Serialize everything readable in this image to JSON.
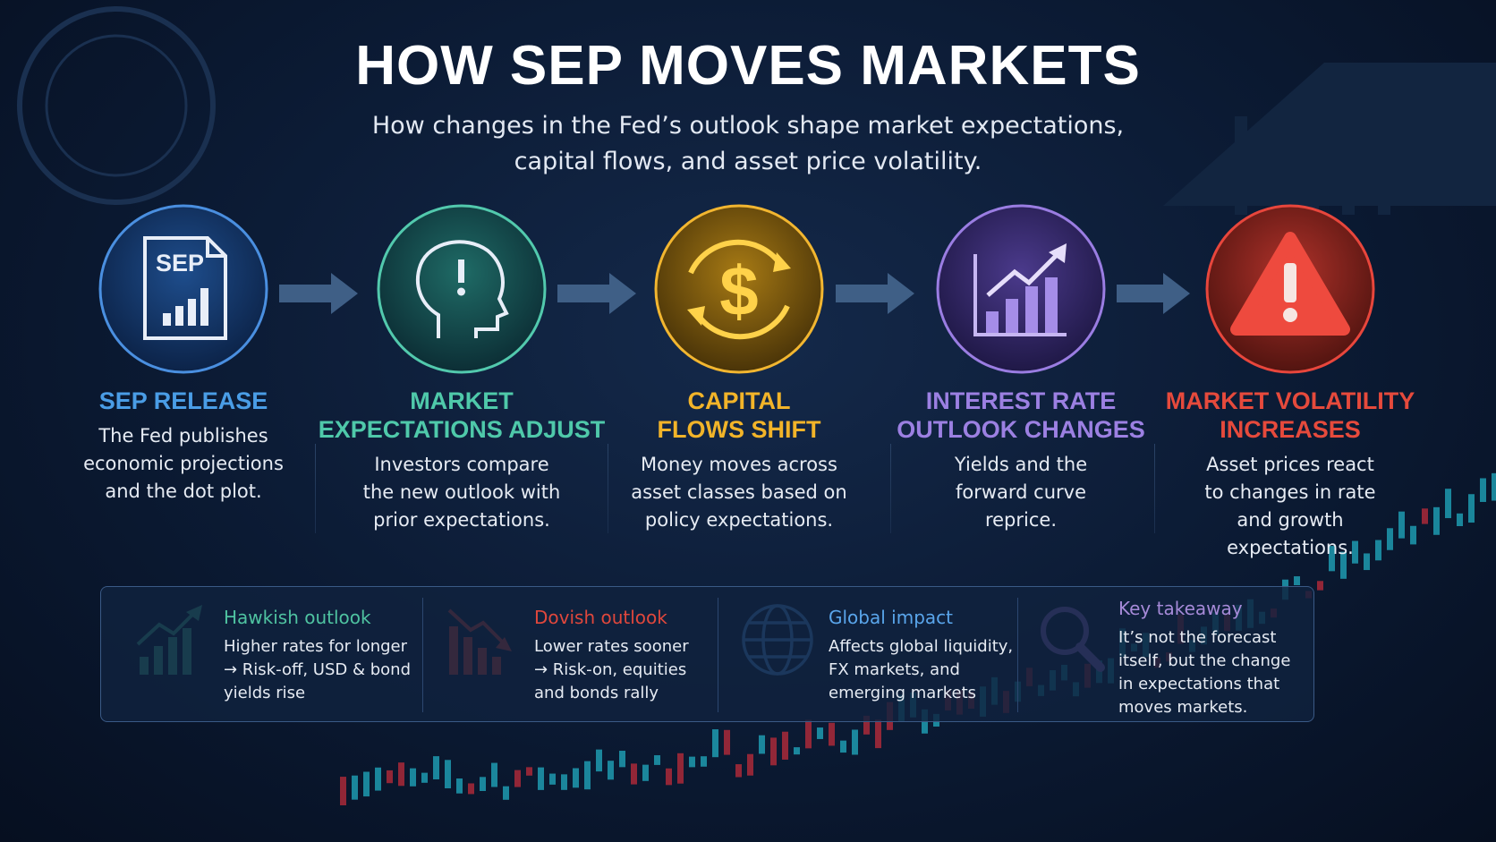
{
  "title": "HOW SEP MOVES MARKETS",
  "subtitle": [
    "How changes in the Fed’s outlook shape market expectations,",
    "capital flows, and asset price volatility."
  ],
  "steps": [
    {
      "icon_label": "SEP",
      "title": [
        "SEP RELEASE"
      ],
      "description": [
        "The Fed publishes",
        "economic projections",
        "and the dot plot."
      ]
    },
    {
      "title": [
        "MARKET",
        "EXPECTATIONS ADJUST"
      ],
      "description": [
        "Investors compare",
        "the new outlook with",
        "prior expectations."
      ]
    },
    {
      "title": [
        "CAPITAL",
        "FLOWS SHIFT"
      ],
      "description": [
        "Money moves across",
        "asset classes based on",
        "policy expectations."
      ]
    },
    {
      "title": [
        "INTEREST RATE",
        "OUTLOOK CHANGES"
      ],
      "description": [
        "Yields and the",
        "forward curve",
        "reprice."
      ]
    },
    {
      "title": [
        "MARKET VOLATILITY",
        "INCREASES"
      ],
      "description": [
        "Asset prices react",
        "to changes in rate",
        "and growth",
        "expectations."
      ]
    }
  ],
  "notes": [
    {
      "title": "Hawkish outlook",
      "text": [
        "Higher rates for longer",
        "→ Risk-off, USD & bond",
        "yields rise"
      ]
    },
    {
      "title": "Dovish outlook",
      "text": [
        "Lower rates sooner",
        "→ Risk-on, equities",
        "and bonds rally"
      ]
    },
    {
      "title": "Global impact",
      "text": [
        "Affects global liquidity,",
        "FX markets, and",
        "emerging markets"
      ]
    },
    {
      "title": "Key takeaway",
      "text": [
        "It’s not the forecast",
        "itself, but the change",
        "in expectations that",
        "moves markets."
      ]
    }
  ]
}
